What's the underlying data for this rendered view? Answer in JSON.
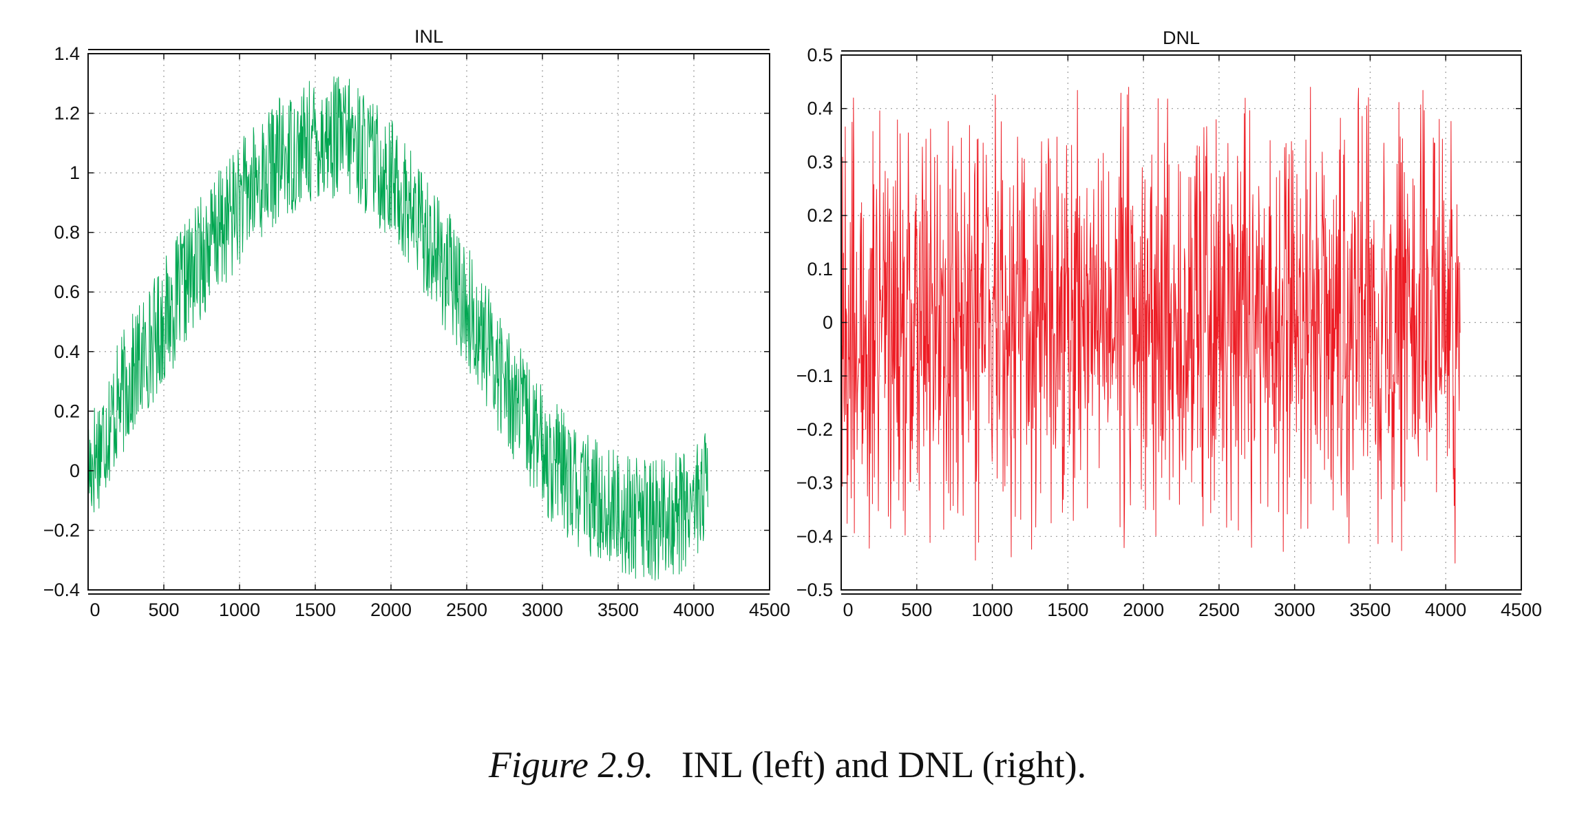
{
  "caption": {
    "label": "Figure 2.9.",
    "text": "INL (left) and DNL (right)."
  },
  "chart_data": [
    {
      "type": "line",
      "title": "INL",
      "xlabel": "",
      "ylabel": "",
      "xlim": [
        0,
        4500
      ],
      "ylim": [
        -0.4,
        1.4
      ],
      "xticks": [
        0,
        500,
        1000,
        1500,
        2000,
        2500,
        3000,
        3500,
        4000,
        4500
      ],
      "yticks": [
        -0.4,
        -0.2,
        0,
        0.2,
        0.4,
        0.6,
        0.8,
        1,
        1.2,
        1.4
      ],
      "ytick_labels": [
        "−0.4",
        "−0.2",
        "0",
        "0.2",
        "0.4",
        "0.6",
        "0.8",
        "1",
        "1.2",
        "1.4"
      ],
      "grid": true,
      "color": "#00a651",
      "series": [
        {
          "description_points_x": [
            0,
            250,
            500,
            750,
            1000,
            1250,
            1500,
            1650,
            1750,
            2000,
            2250,
            2500,
            2750,
            3000,
            3250,
            3500,
            3750,
            3900,
            4095
          ],
          "trend_y": [
            0.0,
            0.28,
            0.5,
            0.72,
            0.9,
            1.04,
            1.11,
            1.12,
            1.11,
            0.98,
            0.78,
            0.55,
            0.3,
            0.07,
            -0.07,
            -0.14,
            -0.17,
            -0.14,
            -0.05
          ],
          "noise_amplitude": 0.21
        }
      ]
    },
    {
      "type": "line",
      "title": "DNL",
      "xlabel": "",
      "ylabel": "",
      "xlim": [
        0,
        4500
      ],
      "ylim": [
        -0.5,
        0.5
      ],
      "xticks": [
        0,
        500,
        1000,
        1500,
        2000,
        2500,
        3000,
        3500,
        4000,
        4500
      ],
      "yticks": [
        -0.5,
        -0.4,
        -0.3,
        -0.2,
        -0.1,
        0,
        0.1,
        0.2,
        0.3,
        0.4,
        0.5
      ],
      "ytick_labels": [
        "−0.5",
        "−0.4",
        "−0.3",
        "−0.2",
        "−0.1",
        "0",
        "0.1",
        "0.2",
        "0.3",
        "0.4",
        "0.5"
      ],
      "grid": true,
      "color": "#ed1c24",
      "series": [
        {
          "x_range": [
            0,
            4095
          ],
          "mean_y": 0.0,
          "peak_range": [
            -0.45,
            0.44
          ]
        }
      ]
    }
  ]
}
